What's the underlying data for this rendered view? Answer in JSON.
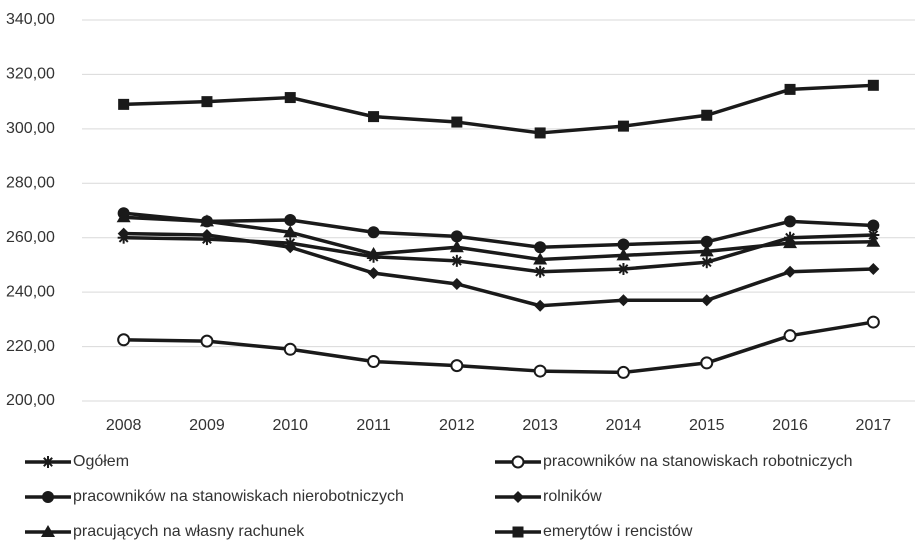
{
  "chart_data": {
    "type": "line",
    "categories": [
      "2008",
      "2009",
      "2010",
      "2011",
      "2012",
      "2013",
      "2014",
      "2015",
      "2016",
      "2017"
    ],
    "series": [
      {
        "name": "Ogółem",
        "color": "#1a1a1a",
        "marker": "asterisk",
        "values": [
          260,
          259.5,
          258,
          253,
          251.5,
          247.5,
          248.5,
          251,
          260,
          261
        ]
      },
      {
        "name": "pracowników na stanowiskach robotniczych",
        "color": "#1a1a1a",
        "marker": "open-circle",
        "values": [
          222.5,
          222,
          219,
          214.5,
          213,
          211,
          210.5,
          214,
          224,
          229
        ]
      },
      {
        "name": "pracowników na stanowiskach nierobotniczych",
        "color": "#1a1a1a",
        "marker": "circle",
        "values": [
          269,
          266,
          266.5,
          262,
          260.5,
          256.5,
          257.5,
          258.5,
          266,
          264.5
        ]
      },
      {
        "name": "rolników",
        "color": "#1a1a1a",
        "marker": "diamond",
        "values": [
          261.5,
          261,
          256.5,
          247,
          243,
          235,
          237,
          237,
          247.5,
          248.5
        ]
      },
      {
        "name": "pracujących na własny rachunek",
        "color": "#1a1a1a",
        "marker": "triangle",
        "values": [
          267.5,
          266,
          262,
          254,
          256.5,
          252,
          253.5,
          255,
          258,
          258.5
        ]
      },
      {
        "name": "emerytów i rencistów",
        "color": "#1a1a1a",
        "marker": "square",
        "values": [
          309,
          310,
          311.5,
          304.5,
          302.5,
          298.5,
          301,
          305,
          314.5,
          316
        ]
      }
    ],
    "ylim": [
      200,
      340
    ],
    "yticks": [
      {
        "value": 200,
        "label": "200,00"
      },
      {
        "value": 220,
        "label": "220,00"
      },
      {
        "value": 240,
        "label": "240,00"
      },
      {
        "value": 260,
        "label": "260,00"
      },
      {
        "value": 280,
        "label": "280,00"
      },
      {
        "value": 300,
        "label": "300,00"
      },
      {
        "value": 320,
        "label": "320,00"
      },
      {
        "value": 340,
        "label": "340,00"
      }
    ],
    "grid": true,
    "legend": "bottom"
  }
}
